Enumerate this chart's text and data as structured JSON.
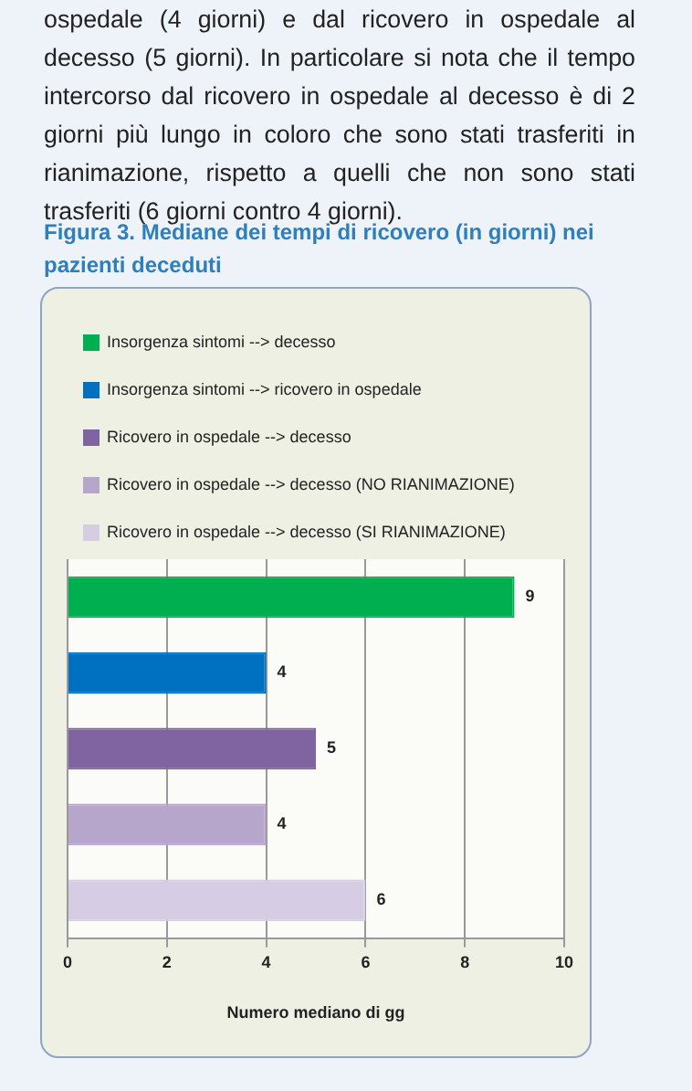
{
  "chart_data": {
    "type": "bar",
    "orientation": "horizontal",
    "title": "Figura 3. Mediane dei tempi di ricovero (in giorni) nei pazienti deceduti",
    "annotations": [
      "ospedale (4 giorni) e dal ricovero in ospedale al decesso (5 giorni). In particolare si nota che il tempo intercorso dal ricovero in ospedale al decesso è di 2 giorni più lungo in coloro che sono stati trasferiti in rianimazione, rispetto a quelli che non sono stati trasferiti (6 giorni contro 4 giorni)."
    ],
    "xlabel": "Numero mediano di gg",
    "categories": [
      null,
      null,
      null,
      null,
      null
    ],
    "series": [
      {
        "name": "Insorgenza sintomi --> decesso",
        "color": "#00b050",
        "values": [
          9,
          null,
          null,
          null,
          null
        ]
      },
      {
        "name": "Insorgenza sintomi --> ricovero in ospedale",
        "color": "#0070c0",
        "values": [
          null,
          4,
          null,
          null,
          null
        ]
      },
      {
        "name": "Ricovero in ospedale --> decesso",
        "color": "#8064a2",
        "values": [
          null,
          null,
          5,
          null,
          null
        ]
      },
      {
        "name": "Ricovero in ospedale --> decesso (NO RIANIMAZIONE)",
        "color": "#b6a6cc",
        "values": [
          null,
          null,
          null,
          4,
          null
        ]
      },
      {
        "name": "Ricovero in ospedale --> decesso (SI RIANIMAZIONE)",
        "color": "#d6cce4",
        "values": [
          null,
          null,
          null,
          null,
          6
        ]
      }
    ],
    "xlim": [
      0,
      10
    ],
    "xticks": [
      0,
      2,
      4,
      6,
      8,
      10
    ],
    "grid": "x",
    "stacked": true,
    "legend": "top left",
    "data_labels": true
  }
}
